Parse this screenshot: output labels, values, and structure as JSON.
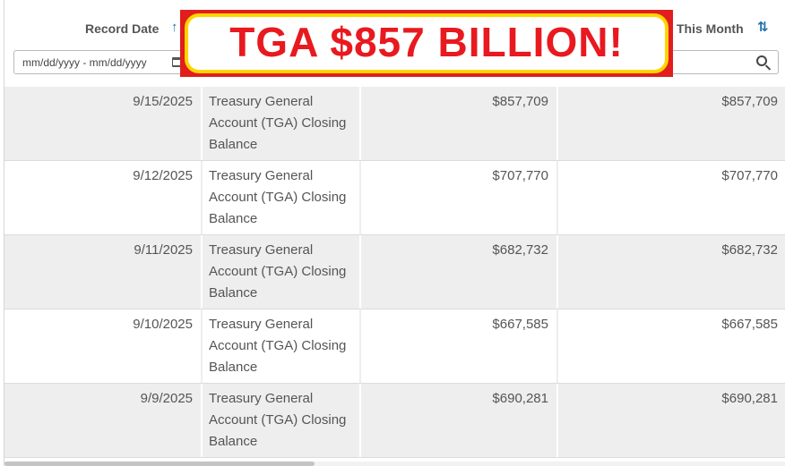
{
  "header": {
    "record_date_label": "Record Date",
    "this_month_label": "This Month",
    "date_filter_placeholder": "mm/dd/yyyy - mm/dd/yyyy"
  },
  "banner": {
    "text": "TGA $857 BILLION!"
  },
  "rows": [
    {
      "date": "9/15/2025",
      "account": "Treasury General Account (TGA) Closing Balance",
      "closing": "$857,709",
      "month": "$857,709"
    },
    {
      "date": "9/12/2025",
      "account": "Treasury General Account (TGA) Closing Balance",
      "closing": "$707,770",
      "month": "$707,770"
    },
    {
      "date": "9/11/2025",
      "account": "Treasury General Account (TGA) Closing Balance",
      "closing": "$682,732",
      "month": "$682,732"
    },
    {
      "date": "9/10/2025",
      "account": "Treasury General Account (TGA) Closing Balance",
      "closing": "$667,585",
      "month": "$667,585"
    },
    {
      "date": "9/9/2025",
      "account": "Treasury General Account (TGA) Closing Balance",
      "closing": "$690,281",
      "month": "$690,281"
    }
  ],
  "colors": {
    "banner_red": "#e11d1d",
    "banner_yellow": "#ffd400",
    "sort_icon": "#1f6fa8"
  },
  "icons": {
    "record_date_sort": "sort-asc-icon",
    "this_month_sort": "sort-both-icon",
    "search": "search-icon",
    "calendar": "calendar-icon"
  }
}
